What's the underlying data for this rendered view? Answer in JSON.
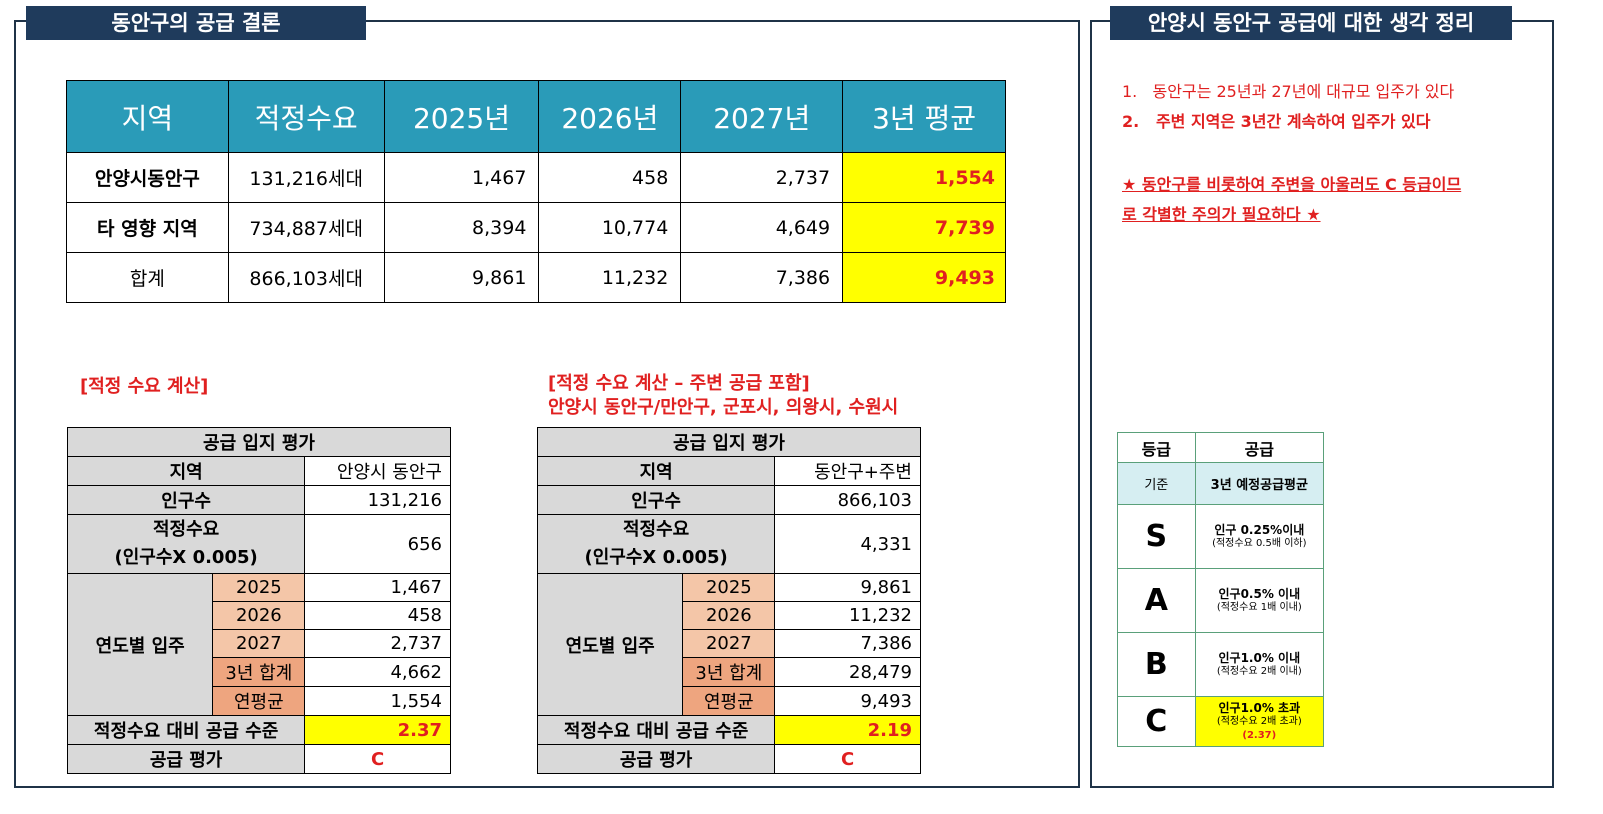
{
  "left_panel": {
    "title": "동안구의 공급 결론",
    "summary_table": {
      "headers": [
        "지역",
        "적정수요",
        "2025년",
        "2026년",
        "2027년",
        "3년 평균"
      ],
      "rows": [
        {
          "region": "안양시동안구",
          "demand": "131,216세대",
          "y2025": "1,467",
          "y2026": "458",
          "y2027": "2,737",
          "avg": "1,554"
        },
        {
          "region": "타 영향 지역",
          "demand": "734,887세대",
          "y2025": "8,394",
          "y2026": "10,774",
          "y2027": "4,649",
          "avg": "7,739"
        },
        {
          "region": "합계",
          "demand": "866,103세대",
          "y2025": "9,861",
          "y2026": "11,232",
          "y2027": "7,386",
          "avg": "9,493"
        }
      ]
    },
    "calc1": {
      "label": "[적정 수요 계산]",
      "table_title": "공급 입지 평가",
      "region_label": "지역",
      "region_value": "안양시 동안구",
      "population_label": "인구수",
      "population_value": "131,216",
      "demand_label_line1": "적정수요",
      "demand_label_line2": "(인구수X 0.005)",
      "demand_value": "656",
      "yearly_label": "연도별 입주",
      "years": [
        {
          "year": "2025",
          "value": "1,467"
        },
        {
          "year": "2026",
          "value": "458"
        },
        {
          "year": "2027",
          "value": "2,737"
        },
        {
          "year": "3년 합계",
          "value": "4,662"
        },
        {
          "year": "연평균",
          "value": "1,554"
        }
      ],
      "ratio_label": "적정수요 대비 공급 수준",
      "ratio_value": "2.37",
      "grade_label": "공급 평가",
      "grade_value": "C"
    },
    "calc2": {
      "label_line1": "[적정 수요 계산 – 주변 공급 포함]",
      "label_line2": "안양시 동안구/만안구, 군포시, 의왕시, 수원시",
      "table_title": "공급 입지 평가",
      "region_label": "지역",
      "region_value": "동안구+주변",
      "population_label": "인구수",
      "population_value": "866,103",
      "demand_label_line1": "적정수요",
      "demand_label_line2": "(인구수X 0.005)",
      "demand_value": "4,331",
      "yearly_label": "연도별 입주",
      "years": [
        {
          "year": "2025",
          "value": "9,861"
        },
        {
          "year": "2026",
          "value": "11,232"
        },
        {
          "year": "2027",
          "value": "7,386"
        },
        {
          "year": "3년 합계",
          "value": "28,479"
        },
        {
          "year": "연평균",
          "value": "9,493"
        }
      ],
      "ratio_label": "적정수요 대비 공급 수준",
      "ratio_value": "2.19",
      "grade_label": "공급 평가",
      "grade_value": "C"
    }
  },
  "right_panel": {
    "title": "안양시 동안구 공급에 대한 생각 정리",
    "notes": [
      {
        "num": "1.",
        "text": "동안구는 25년과 27년에 대규모 입주가 있다"
      },
      {
        "num": "2.",
        "text": "주변 지역은 3년간 계속하여 입주가 있다"
      }
    ],
    "star_note_line1": "★ 동안구를 비롯하여 주변을 아울러도 C 등급이므",
    "star_note_line2": "로 각별한 주의가 필요하다 ★",
    "grade_table": {
      "header_grade": "등급",
      "header_supply": "공급",
      "base_label": "기준",
      "base_value": "3년 예정공급평균",
      "grades": [
        {
          "letter": "S",
          "desc": "인구 0.25%이내",
          "sub": "(적정수요 0.5배 이하)"
        },
        {
          "letter": "A",
          "desc": "인구0.5% 이내",
          "sub": "(적정수요 1배 이내)"
        },
        {
          "letter": "B",
          "desc": "인구1.0% 이내",
          "sub": "(적정수요 2배 이내)"
        },
        {
          "letter": "C",
          "desc": "인구1.0% 초과",
          "sub": "(적정수요 2배 초과)",
          "score": "(2.37)"
        }
      ]
    }
  },
  "colors": {
    "header_teal": "#2a9bb8",
    "navy": "#1f3b5c",
    "highlight": "#ffff00",
    "red": "#e02020"
  }
}
